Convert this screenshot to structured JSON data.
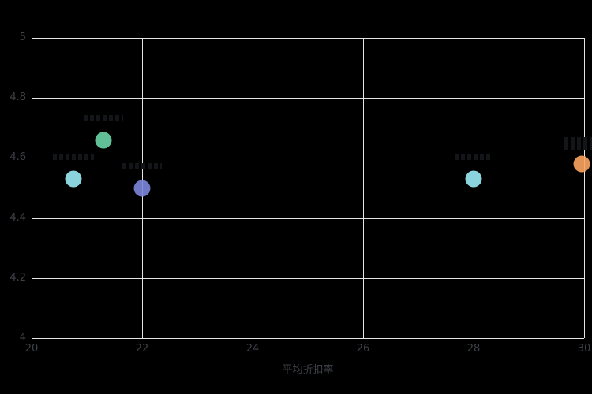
{
  "chart_data": {
    "type": "scatter",
    "title": "",
    "xlabel": "平均折扣率",
    "ylabel": "",
    "xlim": [
      20,
      30
    ],
    "ylim": [
      4,
      5
    ],
    "grid": true,
    "legend": "none",
    "background": "#000000",
    "xticks": [
      {
        "value": 20,
        "label": "20"
      },
      {
        "value": 22,
        "label": "22"
      },
      {
        "value": 24,
        "label": "24"
      },
      {
        "value": 26,
        "label": "26"
      },
      {
        "value": 28,
        "label": "28"
      },
      {
        "value": 30,
        "label": "30"
      }
    ],
    "yticks": [
      {
        "value": 5,
        "label": "5"
      },
      {
        "value": 4.8,
        "label": "4.8"
      },
      {
        "value": 4.6,
        "label": "4.6"
      },
      {
        "value": 4.4,
        "label": "4.4"
      },
      {
        "value": 4.2,
        "label": "4.2"
      },
      {
        "value": 4,
        "label": "4"
      }
    ],
    "points": [
      {
        "x": 20.76,
        "y": 4.53,
        "color": "#9AEAF5",
        "label_illegible": true,
        "label_w": 52,
        "label_h": 8,
        "label_offset": 28
      },
      {
        "x": 21.3,
        "y": 4.66,
        "color": "#6BD4A6",
        "label_illegible": true,
        "label_w": 50,
        "label_h": 8,
        "label_offset": 28
      },
      {
        "x": 22,
        "y": 4.5,
        "color": "#7B86DB",
        "label_illegible": true,
        "label_w": 50,
        "label_h": 8,
        "label_offset": 28
      },
      {
        "x": 28,
        "y": 4.53,
        "color": "#9AEAF5",
        "label_illegible": true,
        "label_w": 48,
        "label_h": 8,
        "label_offset": 28
      },
      {
        "x": 29.95,
        "y": 4.58,
        "color": "#FBA55F",
        "label_illegible": true,
        "label_w": 44,
        "label_h": 16,
        "label_offset": 26
      }
    ]
  },
  "theme": {
    "grid_color": "#E4E4E4",
    "tick_color": "#3E4146",
    "faint_label_color": "#141518"
  }
}
